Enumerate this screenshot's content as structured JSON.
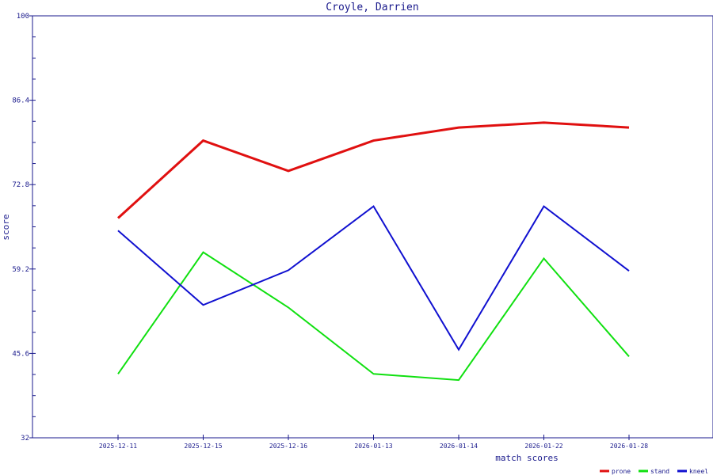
{
  "chart_data": {
    "type": "line",
    "title": "Croyle, Darrien",
    "xlabel": "match scores",
    "ylabel": "score",
    "ylim": [
      32,
      100
    ],
    "yticks": [
      "32",
      "45.6",
      "59.2",
      "72.8",
      "86.4",
      "100"
    ],
    "categories": [
      "2025-12-11",
      "2025-12-15",
      "2025-12-16",
      "2026-01-13",
      "2026-01-14",
      "2026-01-22",
      "2026-01-28"
    ],
    "grid": false,
    "legend_position": "bottom-right",
    "series": [
      {
        "name": "prone",
        "color": "#e01010",
        "values": [
          67.4,
          79.9,
          75.0,
          79.9,
          82.0,
          82.8,
          82.0
        ]
      },
      {
        "name": "stand",
        "color": "#10e010",
        "values": [
          42.3,
          61.9,
          53.0,
          42.3,
          41.3,
          60.9,
          45.1
        ]
      },
      {
        "name": "kneel",
        "color": "#1010d0",
        "values": [
          65.4,
          53.4,
          59.0,
          69.3,
          46.2,
          69.3,
          58.9
        ]
      }
    ]
  }
}
